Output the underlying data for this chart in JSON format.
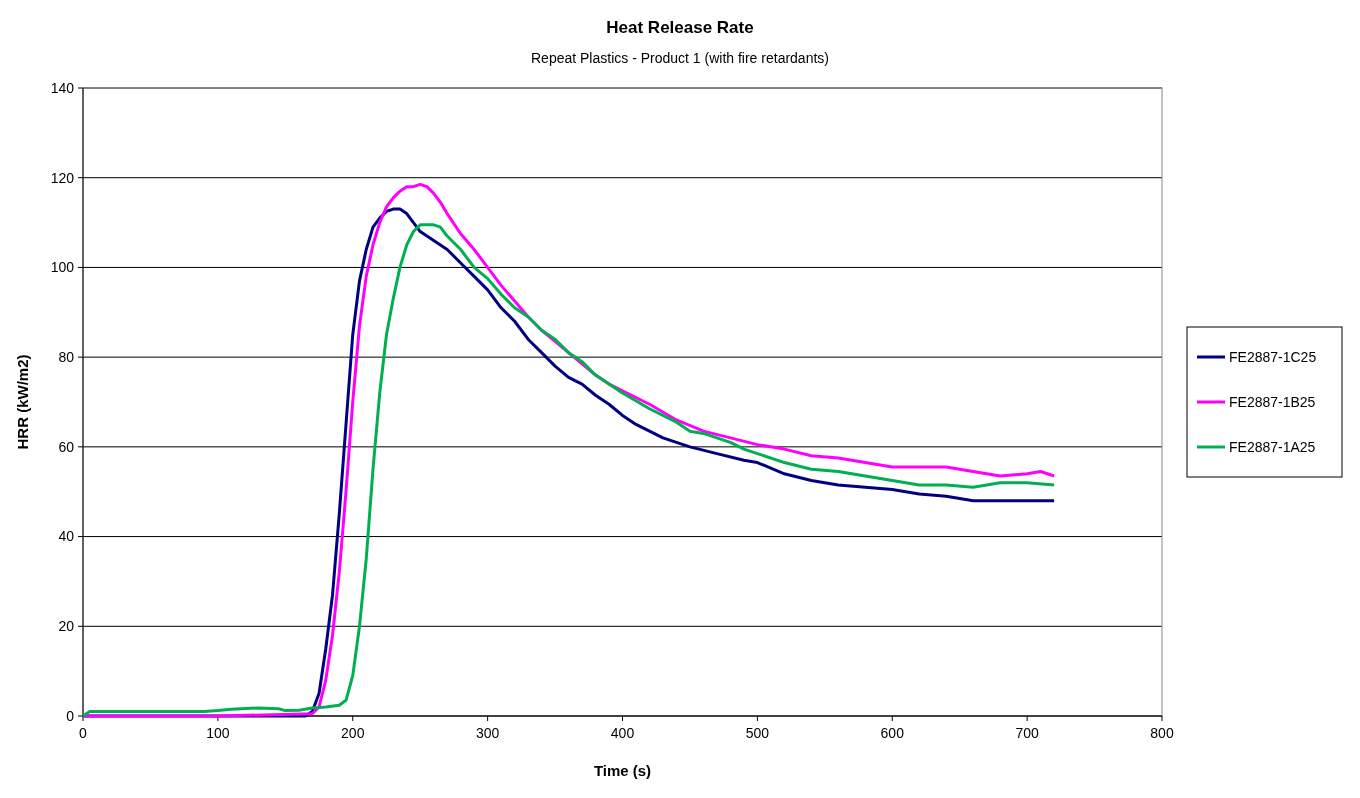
{
  "chart_data": {
    "type": "line",
    "title": "Heat Release Rate",
    "subtitle": "Repeat Plastics - Product 1 (with fire retardants)",
    "xlabel": "Time (s)",
    "ylabel": "HRR (kW/m2)",
    "xlim": [
      0,
      800
    ],
    "xticks": [
      0,
      100,
      200,
      300,
      400,
      500,
      600,
      700,
      800
    ],
    "ylim": [
      0,
      140
    ],
    "yticks": [
      0,
      20,
      40,
      60,
      80,
      100,
      120,
      140
    ],
    "grid": "y",
    "legend": "right",
    "line_style": "solid",
    "series": [
      {
        "name": "FE2887-1C25",
        "color": "#000080",
        "x": [
          0,
          100,
          165,
          170,
          175,
          180,
          185,
          190,
          195,
          200,
          205,
          210,
          215,
          220,
          225,
          230,
          235,
          240,
          245,
          250,
          260,
          270,
          280,
          290,
          300,
          310,
          320,
          330,
          340,
          350,
          360,
          370,
          380,
          390,
          400,
          410,
          420,
          430,
          450,
          470,
          490,
          500,
          520,
          540,
          560,
          580,
          600,
          620,
          640,
          660,
          680,
          700,
          720
        ],
        "values": [
          0,
          0,
          0,
          1,
          5,
          15,
          27,
          45,
          65,
          85,
          97,
          104,
          109,
          111,
          112.5,
          113,
          113,
          112,
          110,
          108,
          106,
          104,
          101,
          98,
          95,
          91,
          88,
          84,
          81,
          78,
          75.5,
          74,
          71.5,
          69.5,
          67,
          65,
          63.5,
          62,
          60,
          58.5,
          57,
          56.5,
          54,
          52.5,
          51.5,
          51,
          50.5,
          49.5,
          49,
          48,
          48,
          48,
          48
        ]
      },
      {
        "name": "FE2887-1B25",
        "color": "#ff00ff",
        "x": [
          0,
          100,
          170,
          175,
          180,
          185,
          190,
          195,
          200,
          205,
          210,
          215,
          220,
          225,
          230,
          235,
          240,
          245,
          250,
          255,
          260,
          265,
          270,
          280,
          290,
          300,
          310,
          320,
          330,
          340,
          350,
          360,
          370,
          380,
          390,
          400,
          420,
          440,
          460,
          480,
          500,
          520,
          540,
          560,
          580,
          600,
          620,
          640,
          660,
          680,
          700,
          710,
          720
        ],
        "values": [
          0,
          0,
          0.5,
          2,
          8,
          18,
          32,
          50,
          70,
          87,
          98,
          105,
          110,
          113.5,
          115.5,
          117,
          118,
          118,
          118.5,
          118,
          116.5,
          114.5,
          112,
          107.5,
          104,
          100,
          96,
          92.5,
          89,
          86,
          83.5,
          81,
          78.5,
          76,
          74,
          72.5,
          69.5,
          66,
          63.5,
          62,
          60.5,
          59.5,
          58,
          57.5,
          56.5,
          55.5,
          55.5,
          55.5,
          54.5,
          53.5,
          54,
          54.5,
          53.5
        ]
      },
      {
        "name": "FE2887-1A25",
        "color": "#00b050",
        "x": [
          0,
          5,
          10,
          20,
          90,
          100,
          110,
          130,
          145,
          150,
          160,
          170,
          180,
          190,
          195,
          200,
          205,
          210,
          215,
          220,
          225,
          230,
          235,
          240,
          245,
          250,
          260,
          265,
          270,
          280,
          290,
          300,
          310,
          320,
          330,
          340,
          350,
          360,
          370,
          380,
          400,
          420,
          440,
          450,
          460,
          480,
          490,
          500,
          520,
          540,
          560,
          580,
          600,
          620,
          640,
          660,
          680,
          700,
          720
        ],
        "values": [
          0,
          1,
          1,
          1,
          1,
          1.2,
          1.5,
          1.8,
          1.6,
          1.2,
          1.3,
          1.8,
          2,
          2.4,
          3.5,
          9,
          20,
          35,
          55,
          72,
          85,
          93,
          100,
          105,
          108,
          109.5,
          109.5,
          109,
          107,
          104,
          100,
          97.5,
          94,
          91,
          89,
          86,
          84,
          81,
          79,
          76,
          72,
          68.5,
          65.5,
          63.5,
          63,
          61,
          59.5,
          58.5,
          56.5,
          55,
          54.5,
          53.5,
          52.5,
          51.5,
          51.5,
          51,
          52,
          52,
          51.5
        ]
      }
    ]
  }
}
